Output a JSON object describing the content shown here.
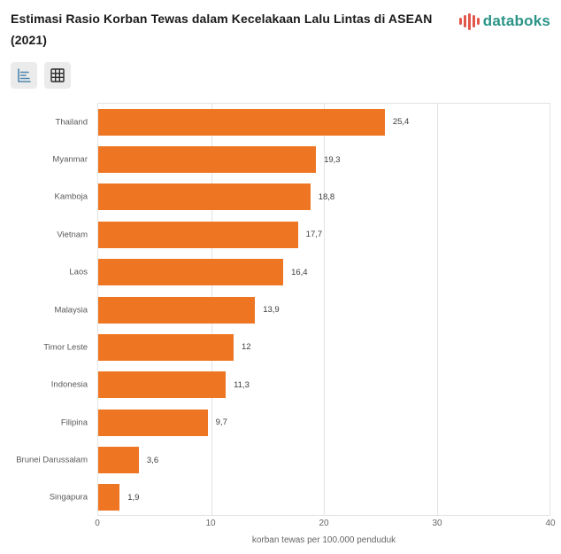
{
  "header": {
    "title": "Estimasi Rasio Korban Tewas dalam Kecelakaan Lalu Lintas di ASEAN (2021)",
    "logo_text": "databoks"
  },
  "toolbar": {
    "buttons": [
      {
        "name": "chart-view",
        "icon": "bar-chart-icon"
      },
      {
        "name": "table-view",
        "icon": "table-icon"
      }
    ]
  },
  "colors": {
    "bar": "#ee7623",
    "logo_red": "#e2574c",
    "logo_teal": "#2a9487",
    "icon_blue": "#4d87ae",
    "icon_dark": "#2b2b2b",
    "grid": "#e3e3e3"
  },
  "chart_data": {
    "type": "bar",
    "orientation": "horizontal",
    "title": "Estimasi Rasio Korban Tewas dalam Kecelakaan Lalu Lintas di ASEAN (2021)",
    "categories": [
      "Thailand",
      "Myanmar",
      "Kamboja",
      "Vietnam",
      "Laos",
      "Malaysia",
      "Timor Leste",
      "Indonesia",
      "Filipina",
      "Brunei Darussalam",
      "Singapura"
    ],
    "values": [
      25.4,
      19.3,
      18.8,
      17.7,
      16.4,
      13.9,
      12,
      11.3,
      9.7,
      3.6,
      1.9
    ],
    "value_labels": [
      "25,4",
      "19,3",
      "18,8",
      "17,7",
      "16,4",
      "13,9",
      "12",
      "11,3",
      "9,7",
      "3,6",
      "1,9"
    ],
    "xlabel": "korban tewas per 100.000 penduduk",
    "xlim": [
      0,
      40
    ],
    "xticks": [
      0,
      10,
      20,
      30,
      40
    ],
    "grid": true,
    "legend": false
  }
}
